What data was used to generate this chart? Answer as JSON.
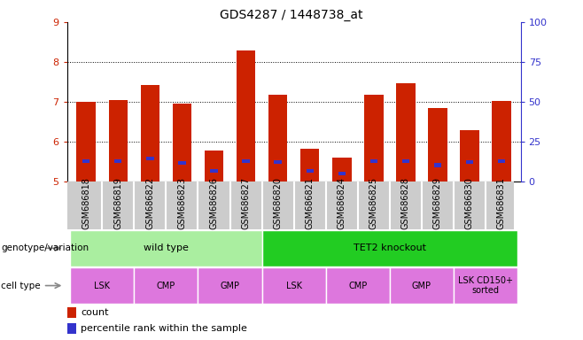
{
  "title": "GDS4287 / 1448738_at",
  "samples": [
    "GSM686818",
    "GSM686819",
    "GSM686822",
    "GSM686823",
    "GSM686826",
    "GSM686827",
    "GSM686820",
    "GSM686821",
    "GSM686824",
    "GSM686825",
    "GSM686828",
    "GSM686829",
    "GSM686830",
    "GSM686831"
  ],
  "red_values": [
    7.0,
    7.05,
    7.42,
    6.95,
    5.78,
    8.28,
    7.18,
    5.82,
    5.6,
    7.18,
    7.48,
    6.85,
    6.3,
    7.02
  ],
  "blue_values": [
    5.52,
    5.52,
    5.58,
    5.48,
    5.27,
    5.52,
    5.5,
    5.28,
    5.2,
    5.52,
    5.52,
    5.42,
    5.5,
    5.52
  ],
  "ylim": [
    5.0,
    9.0
  ],
  "yticks_left": [
    5,
    6,
    7,
    8,
    9
  ],
  "yticks_right": [
    0,
    25,
    50,
    75,
    100
  ],
  "right_axis_color": "#3333cc",
  "left_axis_color": "#cc2200",
  "bar_color": "#cc2200",
  "dot_color": "#3333cc",
  "grid_color": "#000000",
  "genotype_groups": [
    {
      "label": "wild type",
      "start": 0,
      "end": 6,
      "color": "#aaeea0"
    },
    {
      "label": "TET2 knockout",
      "start": 6,
      "end": 14,
      "color": "#22cc22"
    }
  ],
  "cell_type_groups": [
    {
      "label": "LSK",
      "start": 0,
      "end": 2
    },
    {
      "label": "CMP",
      "start": 2,
      "end": 4
    },
    {
      "label": "GMP",
      "start": 4,
      "end": 6
    },
    {
      "label": "LSK",
      "start": 6,
      "end": 8
    },
    {
      "label": "CMP",
      "start": 8,
      "end": 10
    },
    {
      "label": "GMP",
      "start": 10,
      "end": 12
    },
    {
      "label": "LSK CD150+\nsorted",
      "start": 12,
      "end": 14
    }
  ],
  "cell_type_color": "#dd77dd",
  "label_genotype": "genotype/variation",
  "label_celltype": "cell type",
  "legend_count": "count",
  "legend_percentile": "percentile rank within the sample",
  "sample_bg_color": "#cccccc",
  "arrow_color": "#888888"
}
